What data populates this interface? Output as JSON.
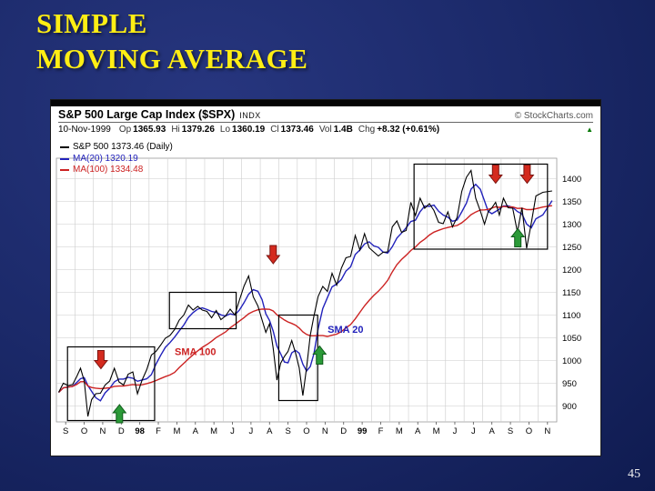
{
  "slide": {
    "title_line1": "SIMPLE",
    "title_line2": "MOVING AVERAGE",
    "page_number": "45"
  },
  "chart": {
    "header": {
      "title": "S&P 500 Large Cap Index ($SPX)",
      "index_label": "INDX",
      "copyright": "© StockCharts.com",
      "date": "10-Nov-1999",
      "quote_parts": [
        {
          "label": "Op",
          "value": "1365.93"
        },
        {
          "label": "Hi",
          "value": "1379.26"
        },
        {
          "label": "Lo",
          "value": "1360.19"
        },
        {
          "label": "Cl",
          "value": "1373.46"
        },
        {
          "label": "Vol",
          "value": "1.4B"
        },
        {
          "label": "Chg",
          "value": "+8.32 (+0.61%)"
        }
      ],
      "change_direction": "up"
    },
    "legend": [
      {
        "label": "S&P 500 1373.46 (Daily)",
        "color": "#000000"
      },
      {
        "label": "MA(20) 1320.19",
        "color": "#2222bb"
      },
      {
        "label": "MA(100) 1334.48",
        "color": "#cc2222"
      }
    ]
  },
  "chart_data": {
    "type": "line",
    "title": "S&P 500 Large Cap Index ($SPX) Daily with SMA 20 and SMA 100",
    "x_span": "Sep-1997 to Nov-1999",
    "x_tick_labels": [
      "S",
      "O",
      "N",
      "D",
      "98",
      "F",
      "M",
      "A",
      "M",
      "J",
      "J",
      "A",
      "S",
      "O",
      "N",
      "D",
      "99",
      "F",
      "M",
      "A",
      "M",
      "J",
      "J",
      "A",
      "S",
      "O",
      "N"
    ],
    "y_ticks": [
      900,
      950,
      1000,
      1050,
      1100,
      1150,
      1200,
      1250,
      1300,
      1350,
      1400
    ],
    "y_range": [
      865,
      1445
    ],
    "grid": true,
    "price_series_name": "S&P 500 (Daily)",
    "weekly_closes_by_month": [
      [
        930,
        950,
        945,
        947
      ],
      [
        965,
        983,
        955,
        877,
        914
      ],
      [
        927,
        928,
        946,
        955
      ],
      [
        983,
        953,
        946,
        970
      ],
      [
        975,
        927,
        957,
        980
      ],
      [
        1012,
        1020,
        1034,
        1049
      ],
      [
        1055,
        1068,
        1089,
        1100
      ],
      [
        1122,
        1111,
        1119,
        1111
      ],
      [
        1108,
        1094,
        1110,
        1090
      ],
      [
        1098,
        1113,
        1100,
        1133
      ],
      [
        1164,
        1186,
        1140,
        1120
      ],
      [
        1089,
        1062,
        1081,
        1027,
        957
      ],
      [
        994,
        1009,
        1020,
        1044,
        1017
      ],
      [
        984,
        923,
        984,
        1056,
        1098
      ],
      [
        1141,
        1163,
        1152,
        1192
      ],
      [
        1166,
        1203,
        1226,
        1229
      ],
      [
        1275,
        1243,
        1279,
        1248
      ],
      [
        1239,
        1230,
        1238,
        1239
      ],
      [
        1294,
        1307,
        1282,
        1286
      ],
      [
        1348,
        1319,
        1357,
        1335
      ],
      [
        1345,
        1330,
        1304,
        1301
      ],
      [
        1327,
        1294,
        1315,
        1372
      ],
      [
        1403,
        1418,
        1357,
        1329
      ],
      [
        1300,
        1327,
        1336,
        1348,
        1320
      ],
      [
        1357,
        1336,
        1335,
        1283
      ],
      [
        1336,
        1247,
        1302,
        1362
      ],
      [
        1370,
        1373
      ]
    ],
    "ma_series": [
      {
        "name": "MA(20)",
        "window_weeks": 4,
        "color": "#2222bb",
        "last_value": 1320.19
      },
      {
        "name": "MA(100)",
        "window_weeks": 20,
        "color": "#cc2222",
        "last_value": 1334.48
      }
    ],
    "annotations": [
      {
        "text": "SMA 100",
        "color": "#cc2222",
        "month": 7.5,
        "price": 1012
      },
      {
        "text": "SMA 20",
        "color": "#2222bb",
        "month": 15.6,
        "price": 1061
      }
    ],
    "highlight_boxes": [
      {
        "month_from": 0.6,
        "month_to": 5.3,
        "price_from": 868,
        "price_to": 1030
      },
      {
        "month_from": 6.1,
        "month_to": 9.7,
        "price_from": 1070,
        "price_to": 1150
      },
      {
        "month_from": 12.0,
        "month_to": 14.1,
        "price_from": 912,
        "price_to": 1100
      },
      {
        "month_from": 19.3,
        "month_to": 26.5,
        "price_from": 1245,
        "price_to": 1432
      }
    ],
    "sell_arrows": [
      {
        "month": 2.4,
        "tip_price": 982
      },
      {
        "month": 11.7,
        "tip_price": 1213
      },
      {
        "month": 23.7,
        "tip_price": 1390
      },
      {
        "month": 25.4,
        "tip_price": 1390
      }
    ],
    "buy_arrows": [
      {
        "month": 3.4,
        "tip_price": 903
      },
      {
        "month": 14.2,
        "tip_price": 1032
      },
      {
        "month": 24.9,
        "tip_price": 1290
      }
    ],
    "colors": {
      "price": "#000000",
      "grid": "#cccccc",
      "sell": "#d42a1e",
      "buy": "#2b9a38",
      "box": "#000000"
    }
  }
}
